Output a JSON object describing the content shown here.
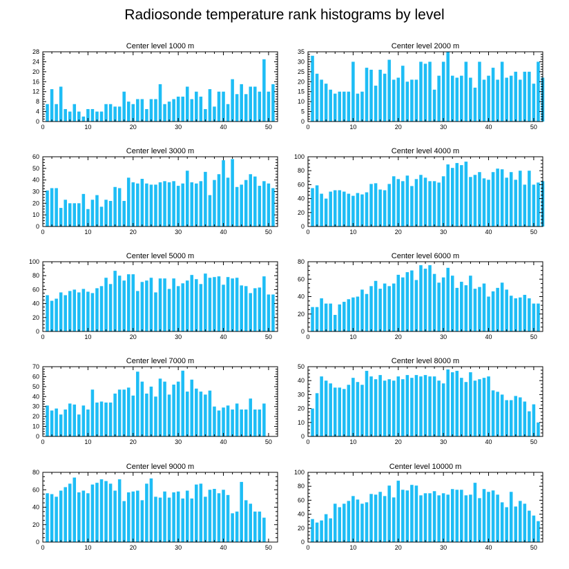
{
  "title": "Radiosonde temperature rank histograms by level",
  "colors": {
    "bar": "#1ebdf5",
    "frame": "#000000",
    "background": "#ffffff"
  },
  "chart_data": [
    {
      "type": "bar",
      "title": "Center level 1000 m",
      "xlim": [
        0,
        52
      ],
      "ylim": [
        0,
        28
      ],
      "xticks": [
        0,
        10,
        20,
        30,
        40,
        50
      ],
      "yticks": [
        0,
        4,
        8,
        12,
        16,
        20,
        24,
        28
      ],
      "values": [
        7,
        13,
        7,
        14,
        5,
        4,
        7,
        4,
        2,
        5,
        5,
        4,
        4,
        7,
        7,
        6,
        6,
        12,
        8,
        7,
        9,
        9,
        5,
        9,
        9,
        15,
        7,
        8,
        9,
        10,
        10,
        14,
        9,
        12,
        10,
        5,
        13,
        6,
        12,
        12,
        7,
        17,
        11,
        15,
        11,
        14,
        14,
        12,
        25,
        12,
        15
      ]
    },
    {
      "type": "bar",
      "title": "Center level 2000 m",
      "xlim": [
        0,
        52
      ],
      "ylim": [
        0,
        35
      ],
      "xticks": [
        0,
        10,
        20,
        30,
        40,
        50
      ],
      "yticks": [
        0,
        5,
        10,
        15,
        20,
        25,
        30,
        35
      ],
      "values": [
        33,
        24,
        21,
        19,
        16,
        14,
        15,
        15,
        15,
        30,
        14,
        15,
        27,
        26,
        18,
        26,
        24,
        31,
        21,
        22,
        28,
        20,
        21,
        21,
        30,
        29,
        30,
        16,
        23,
        30,
        35,
        23,
        22,
        23,
        30,
        22,
        17,
        30,
        21,
        23,
        27,
        21,
        30,
        22,
        23,
        25,
        21,
        25,
        25,
        19,
        30,
        22
      ]
    },
    {
      "type": "bar",
      "title": "Center level 3000 m",
      "xlim": [
        0,
        52
      ],
      "ylim": [
        0,
        60
      ],
      "xticks": [
        0,
        10,
        20,
        30,
        40,
        50
      ],
      "yticks": [
        0,
        10,
        20,
        30,
        40,
        50,
        60
      ],
      "values": [
        31,
        33,
        33,
        16,
        23,
        20,
        20,
        20,
        28,
        15,
        23,
        27,
        17,
        23,
        22,
        34,
        33,
        22,
        42,
        38,
        37,
        41,
        37,
        36,
        36,
        38,
        39,
        38,
        39,
        35,
        37,
        48,
        38,
        37,
        39,
        47,
        27,
        40,
        45,
        57,
        42,
        58,
        34,
        36,
        40,
        45,
        43,
        35,
        39,
        37,
        33
      ]
    },
    {
      "type": "bar",
      "title": "Center level 4000 m",
      "xlim": [
        0,
        52
      ],
      "ylim": [
        0,
        100
      ],
      "xticks": [
        0,
        10,
        20,
        30,
        40,
        50
      ],
      "yticks": [
        0,
        20,
        40,
        60,
        80,
        100
      ],
      "values": [
        55,
        59,
        47,
        40,
        50,
        52,
        52,
        50,
        47,
        44,
        48,
        46,
        49,
        61,
        62,
        53,
        52,
        61,
        72,
        68,
        65,
        73,
        58,
        68,
        74,
        70,
        65,
        65,
        63,
        72,
        89,
        84,
        91,
        88,
        93,
        71,
        74,
        78,
        69,
        67,
        78,
        83,
        82,
        70,
        78,
        67,
        80,
        60,
        80,
        60,
        63,
        65
      ]
    },
    {
      "type": "bar",
      "title": "Center level 5000 m",
      "xlim": [
        0,
        52
      ],
      "ylim": [
        0,
        100
      ],
      "xticks": [
        0,
        10,
        20,
        30,
        40,
        50
      ],
      "yticks": [
        0,
        20,
        40,
        60,
        80,
        100
      ],
      "values": [
        52,
        44,
        47,
        56,
        52,
        58,
        60,
        56,
        61,
        57,
        55,
        62,
        65,
        77,
        68,
        87,
        80,
        73,
        82,
        82,
        58,
        71,
        73,
        77,
        56,
        76,
        76,
        61,
        76,
        65,
        69,
        73,
        81,
        75,
        68,
        83,
        77,
        78,
        79,
        67,
        78,
        76,
        77,
        66,
        65,
        55,
        62,
        63,
        79,
        53,
        53
      ]
    },
    {
      "type": "bar",
      "title": "Center level 6000 m",
      "xlim": [
        0,
        52
      ],
      "ylim": [
        0,
        80
      ],
      "xticks": [
        0,
        10,
        20,
        30,
        40,
        50
      ],
      "yticks": [
        0,
        20,
        40,
        60,
        80
      ],
      "values": [
        28,
        28,
        38,
        32,
        32,
        19,
        31,
        34,
        37,
        39,
        40,
        48,
        43,
        52,
        58,
        49,
        55,
        52,
        55,
        65,
        62,
        68,
        70,
        59,
        76,
        72,
        76,
        66,
        56,
        62,
        73,
        64,
        50,
        57,
        53,
        64,
        49,
        51,
        55,
        40,
        46,
        50,
        56,
        48,
        41,
        38,
        39,
        42,
        38,
        32,
        32
      ]
    },
    {
      "type": "bar",
      "title": "Center level 7000 m",
      "xlim": [
        0,
        52
      ],
      "ylim": [
        0,
        70
      ],
      "xticks": [
        0,
        10,
        20,
        30,
        40,
        50
      ],
      "yticks": [
        0,
        10,
        20,
        30,
        40,
        50,
        60,
        70
      ],
      "values": [
        31,
        26,
        28,
        22,
        27,
        33,
        32,
        22,
        31,
        27,
        47,
        34,
        35,
        34,
        34,
        43,
        47,
        47,
        49,
        41,
        65,
        55,
        43,
        50,
        40,
        58,
        55,
        42,
        52,
        55,
        66,
        45,
        57,
        48,
        45,
        42,
        46,
        30,
        26,
        29,
        31,
        27,
        33,
        27,
        27,
        38,
        27,
        27,
        33
      ]
    },
    {
      "type": "bar",
      "title": "Center level 8000 m",
      "xlim": [
        0,
        52
      ],
      "ylim": [
        0,
        50
      ],
      "xticks": [
        0,
        10,
        20,
        30,
        40,
        50
      ],
      "yticks": [
        0,
        10,
        20,
        30,
        40,
        50
      ],
      "values": [
        20,
        31,
        43,
        40,
        38,
        35,
        35,
        34,
        37,
        42,
        39,
        37,
        47,
        43,
        41,
        44,
        40,
        41,
        40,
        43,
        41,
        44,
        42,
        44,
        43,
        44,
        43,
        43,
        40,
        38,
        48,
        46,
        47,
        42,
        39,
        46,
        40,
        41,
        42,
        43,
        33,
        32,
        30,
        26,
        26,
        29,
        28,
        25,
        18,
        23,
        10
      ]
    },
    {
      "type": "bar",
      "title": "Center level 9000 m",
      "xlim": [
        0,
        52
      ],
      "ylim": [
        0,
        80
      ],
      "xticks": [
        0,
        10,
        20,
        30,
        40,
        50
      ],
      "yticks": [
        0,
        20,
        40,
        60,
        80
      ],
      "values": [
        56,
        55,
        52,
        59,
        63,
        67,
        74,
        57,
        59,
        56,
        66,
        68,
        72,
        70,
        67,
        59,
        72,
        47,
        57,
        58,
        59,
        48,
        67,
        73,
        52,
        51,
        58,
        51,
        57,
        58,
        50,
        59,
        50,
        66,
        67,
        52,
        60,
        61,
        56,
        60,
        54,
        33,
        35,
        69,
        48,
        44,
        35,
        35,
        28
      ]
    },
    {
      "type": "bar",
      "title": "Center level 10000 m",
      "xlim": [
        0,
        52
      ],
      "ylim": [
        0,
        100
      ],
      "xticks": [
        0,
        10,
        20,
        30,
        40,
        50
      ],
      "yticks": [
        0,
        20,
        40,
        60,
        80,
        100
      ],
      "values": [
        33,
        28,
        31,
        40,
        34,
        55,
        50,
        55,
        59,
        66,
        61,
        55,
        57,
        69,
        68,
        72,
        66,
        81,
        64,
        88,
        75,
        74,
        82,
        81,
        67,
        70,
        70,
        73,
        67,
        70,
        68,
        76,
        75,
        75,
        67,
        68,
        85,
        63,
        76,
        72,
        74,
        68,
        57,
        50,
        72,
        51,
        59,
        55,
        45,
        38,
        30
      ]
    }
  ]
}
